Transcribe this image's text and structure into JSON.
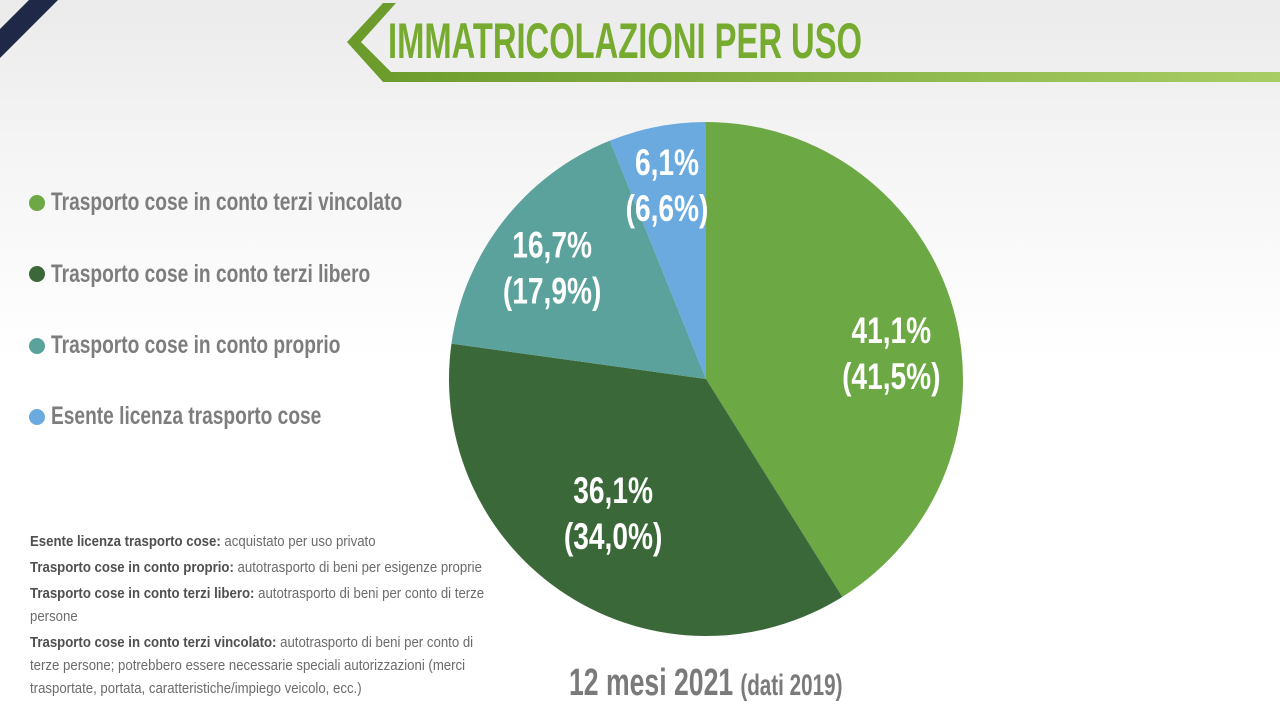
{
  "theme": {
    "accent": "#76ab30",
    "corner": "#1f2846"
  },
  "chart_data": {
    "type": "pie",
    "title": "IMMATRICOLAZIONI PER USO",
    "categories": [
      "Trasporto cose in conto terzi vincolato",
      "Trasporto cose in conto terzi libero",
      "Trasporto cose in conto proprio",
      "Esente licenza trasporto cose"
    ],
    "series": [
      {
        "name": "12 mesi 2021",
        "values": [
          41.1,
          36.1,
          16.7,
          6.1
        ],
        "value_labels": [
          "41,1%",
          "36,1%",
          "16,7%",
          "6,1%"
        ]
      },
      {
        "name": "(dati 2019)",
        "values": [
          41.5,
          34.0,
          17.9,
          6.6
        ],
        "value_labels": [
          "(41,5%)",
          "(34,0%)",
          "(17,9%)",
          "(6,6%)"
        ]
      }
    ],
    "colors": [
      "#6ca843",
      "#3b6839",
      "#5aa29b",
      "#6aaadf"
    ],
    "legend_position": "left"
  },
  "definitions": [
    {
      "term": "Esente licenza trasporto cose:",
      "text": "acquistato per uso privato"
    },
    {
      "term": "Trasporto cose in conto proprio:",
      "text": "autotrasporto di beni per esigenze proprie"
    },
    {
      "term": "Trasporto cose in conto terzi libero:",
      "text": "autotrasporto di beni per conto di terze persone"
    },
    {
      "term": "Trasporto cose in conto terzi vincolato:",
      "text": "autotrasporto di beni per conto di terze persone; potrebbero essere necessarie speciali autorizzazioni (merci trasportate, portata, caratteristiche/impiego veicolo, ecc.)"
    }
  ]
}
